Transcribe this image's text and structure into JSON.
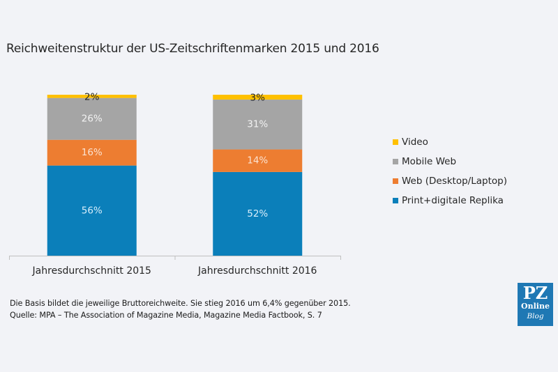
{
  "chart_data": {
    "type": "bar",
    "stacked": true,
    "title": "Reichweitenstruktur der US-Zeitschriftenmarken 2015 und 2016",
    "xlabel": "",
    "ylabel": "",
    "ylim": [
      0,
      100
    ],
    "unit": "%",
    "grid": false,
    "legend_position": "right",
    "categories": [
      "Jahresdurchschnitt 2015",
      "Jahresdurchschnitt 2016"
    ],
    "series": [
      {
        "name": "Print+digitale Replika",
        "values": [
          56,
          52
        ],
        "color": "#0b7fba",
        "label_color": "#d8eefb"
      },
      {
        "name": "Web (Desktop/Laptop)",
        "values": [
          16,
          14
        ],
        "color": "#ed7d31",
        "label_color": "#fbe3d2"
      },
      {
        "name": "Mobile Web",
        "values": [
          26,
          31
        ],
        "color": "#a5a5a5",
        "label_color": "#f2f2f2"
      },
      {
        "name": "Video",
        "values": [
          2,
          3
        ],
        "color": "#ffc000",
        "label_color": "#262626"
      }
    ],
    "legend_order": [
      "Video",
      "Mobile Web",
      "Web (Desktop/Laptop)",
      "Print+digitale Replika"
    ]
  },
  "footnote": {
    "line1": "Die Basis bildet die jeweilige Bruttoreichweite.  Sie stieg 2016 um 6,4% gegenüber 2015.",
    "line2": "Quelle: MPA – The Association of Magazine Media, Magazine Media Factbook,  S. 7"
  },
  "logo": {
    "line1": "PZ",
    "line2": "Online",
    "line3": "Blog",
    "color": "#1f78b4"
  }
}
